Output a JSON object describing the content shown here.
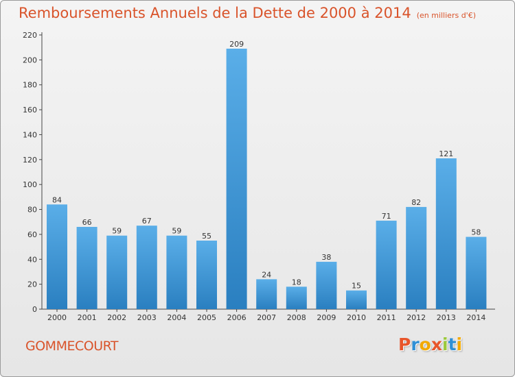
{
  "header": {
    "title": "Remboursements Annuels de la Dette de 2000 à 2014",
    "subtitle": "(en milliers d'€)"
  },
  "footer": {
    "commune": "GOMMECOURT",
    "logo": "Proxiti",
    "logo_colors": [
      "#e8552a",
      "#2e8fd6",
      "#f2a900",
      "#e8552a",
      "#9bc93a",
      "#2e8fd6",
      "#f2a900"
    ]
  },
  "colors": {
    "title": "#d9532a",
    "bar_light": "#5aaee8",
    "bar_dark": "#2a7fc0"
  },
  "chart_data": {
    "type": "bar",
    "title": "Remboursements Annuels de la Dette de 2000 à 2014",
    "subtitle": "(en milliers d'€)",
    "categories": [
      "2000",
      "2001",
      "2002",
      "2003",
      "2004",
      "2005",
      "2006",
      "2007",
      "2008",
      "2009",
      "2010",
      "2011",
      "2012",
      "2013",
      "2014"
    ],
    "values": [
      84,
      66,
      59,
      67,
      59,
      55,
      209,
      24,
      18,
      38,
      15,
      71,
      82,
      121,
      58
    ],
    "xlabel": "",
    "ylabel": "",
    "ylim": [
      0,
      220
    ],
    "yticks": [
      0,
      20,
      40,
      60,
      80,
      100,
      120,
      140,
      160,
      180,
      200,
      220
    ],
    "grid": false,
    "data_labels": true
  }
}
